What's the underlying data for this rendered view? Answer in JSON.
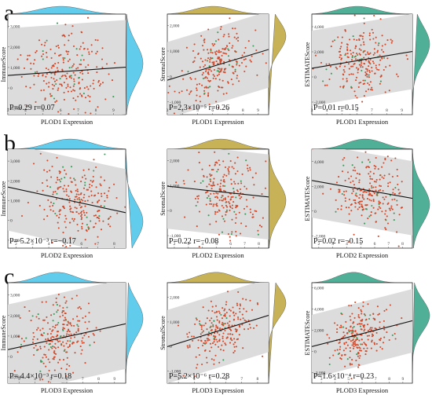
{
  "row_labels": [
    "a",
    "b",
    "c"
  ],
  "colors": {
    "immune": "#52c7ea",
    "stromal": "#c2aa46",
    "estimate": "#3ea88c",
    "points": "#d24a2c",
    "points_alt": "#3a9d5c",
    "band": "#dcdcdc",
    "line": "#111111"
  },
  "chart_data": [
    {
      "type": "scatter",
      "row": "a",
      "score": "immune",
      "xlabel": "PLOD1 Expression",
      "ylabel": "ImmuneScore",
      "annotation": "P=0.29 r=0.07",
      "x_ticks": [
        "3",
        "4",
        "5",
        "6",
        "7",
        "8",
        "9"
      ],
      "y_ticks": [
        "-1,000",
        "0",
        "1,000",
        "2,000",
        "3,000"
      ],
      "xlim": [
        3,
        9.7
      ],
      "ylim": [
        -1300,
        3600
      ],
      "x_mean": 6.3,
      "x_sd": 1.1,
      "y_intercept": 810,
      "slope": 60,
      "y_spread": 1000,
      "band_halfwidth": 2300,
      "n_points": 240,
      "seed": 11
    },
    {
      "type": "scatter",
      "row": "a",
      "score": "stromal",
      "xlabel": "PLOD1 Expression",
      "ylabel": "StromalScore",
      "annotation": "P=2.3×10⁻⁵ r=0.26",
      "x_ticks": [
        "3",
        "4",
        "5",
        "6",
        "7",
        "8",
        "9"
      ],
      "y_ticks": [
        "-1,000",
        "0",
        "1,000",
        "2,000"
      ],
      "xlim": [
        3,
        9.7
      ],
      "ylim": [
        -1500,
        2450
      ],
      "x_mean": 6.3,
      "x_sd": 1.1,
      "y_intercept": 450,
      "slope": 180,
      "y_spread": 620,
      "band_halfwidth": 1500,
      "n_points": 240,
      "seed": 23
    },
    {
      "type": "scatter",
      "row": "a",
      "score": "estimate",
      "xlabel": "PLOD1 Expression",
      "ylabel": "ESTIMATEScore",
      "annotation": "P=0.01 r=0.15",
      "x_ticks": [
        "3",
        "4",
        "5",
        "6",
        "7",
        "8",
        "9"
      ],
      "y_ticks": [
        "-2,000",
        "0",
        "2,000",
        "4,000"
      ],
      "xlim": [
        3,
        9.7
      ],
      "ylim": [
        -3000,
        5000
      ],
      "x_mean": 6.3,
      "x_sd": 1.1,
      "y_intercept": 1350,
      "slope": 200,
      "y_spread": 1500,
      "band_halfwidth": 3000,
      "n_points": 240,
      "seed": 37
    },
    {
      "type": "scatter",
      "row": "b",
      "score": "immune",
      "xlabel": "PLOD2 Expression",
      "ylabel": "ImmuneScore",
      "annotation": "P= 5.2×10⁻³ r=−0.17",
      "x_ticks": [
        "2",
        "3",
        "4",
        "5",
        "6",
        "7",
        "8"
      ],
      "y_ticks": [
        "-1,000",
        "0",
        "1,000",
        "2,000",
        "3,000"
      ],
      "xlim": [
        1.5,
        8.7
      ],
      "ylim": [
        -1400,
        3600
      ],
      "x_mean": 5.6,
      "x_sd": 1.2,
      "y_intercept": 950,
      "slope": -180,
      "y_spread": 950,
      "band_halfwidth": 2200,
      "n_points": 240,
      "seed": 51
    },
    {
      "type": "scatter",
      "row": "b",
      "score": "stromal",
      "xlabel": "PLOD2 Expression",
      "ylabel": "StromalScore",
      "annotation": "P=0.22 r=−0.08",
      "x_ticks": [
        "2",
        "3",
        "4",
        "5",
        "6",
        "7",
        "8"
      ],
      "y_ticks": [
        "-1,000",
        "0",
        "1,000",
        "2,000"
      ],
      "xlim": [
        1.5,
        8.7
      ],
      "ylim": [
        -1500,
        2450
      ],
      "x_mean": 5.6,
      "x_sd": 1.2,
      "y_intercept": 730,
      "slope": -60,
      "y_spread": 720,
      "band_halfwidth": 1700,
      "n_points": 240,
      "seed": 63
    },
    {
      "type": "scatter",
      "row": "b",
      "score": "estimate",
      "xlabel": "PLOD2 Expression",
      "ylabel": "ESTIMATEScore",
      "annotation": "P=0.02 r=−0.15",
      "x_ticks": [
        "2",
        "3",
        "4",
        "5",
        "6",
        "7",
        "8"
      ],
      "y_ticks": [
        "-2,000",
        "0",
        "2,000",
        "4,000"
      ],
      "xlim": [
        1.5,
        8.7
      ],
      "ylim": [
        -3000,
        5000
      ],
      "x_mean": 5.6,
      "x_sd": 1.2,
      "y_intercept": 1650,
      "slope": -200,
      "y_spread": 1500,
      "band_halfwidth": 3000,
      "n_points": 240,
      "seed": 77
    },
    {
      "type": "scatter",
      "row": "c",
      "score": "immune",
      "xlabel": "PLOD3 Expression",
      "ylabel": "ImmuneScore",
      "annotation": "P= 4.4×10⁻³ r=0.18",
      "x_ticks": [
        "3",
        "4",
        "5",
        "6",
        "7",
        "8",
        "9"
      ],
      "y_ticks": [
        "-1,000",
        "0",
        "1,000",
        "2,000",
        "3,000"
      ],
      "xlim": [
        2.3,
        9.7
      ],
      "ylim": [
        -1300,
        3600
      ],
      "x_mean": 5.6,
      "x_sd": 1.0,
      "y_intercept": 900,
      "slope": 170,
      "y_spread": 900,
      "band_halfwidth": 2200,
      "n_points": 240,
      "seed": 89
    },
    {
      "type": "scatter",
      "row": "c",
      "score": "stromal",
      "xlabel": "PLOD3 Expression",
      "ylabel": "StromalScore",
      "annotation": "P=5.2×10⁻⁶ r=0.28",
      "x_ticks": [
        "3",
        "4",
        "5",
        "6",
        "7",
        "8"
      ],
      "y_ticks": [
        "-1,000",
        "0",
        "1,000",
        "2,000"
      ],
      "xlim": [
        2.3,
        8.7
      ],
      "ylim": [
        -1500,
        2600
      ],
      "x_mean": 5.6,
      "x_sd": 1.0,
      "y_intercept": 650,
      "slope": 200,
      "y_spread": 620,
      "band_halfwidth": 1500,
      "n_points": 240,
      "seed": 97
    },
    {
      "type": "scatter",
      "row": "c",
      "score": "estimate",
      "xlabel": "PLOD3 Expression",
      "ylabel": "ESTIMATEScore",
      "annotation": "P=1.6×10⁻⁴ r=0.23",
      "x_ticks": [
        "3",
        "4",
        "5",
        "6",
        "7",
        "8",
        "9"
      ],
      "y_ticks": [
        "-2,000",
        "0",
        "2,000",
        "4,000",
        "6,000"
      ],
      "xlim": [
        2.3,
        9.7
      ],
      "ylim": [
        -3000,
        6500
      ],
      "x_mean": 5.6,
      "x_sd": 1.0,
      "y_intercept": 1550,
      "slope": 330,
      "y_spread": 1500,
      "band_halfwidth": 3000,
      "n_points": 240,
      "seed": 113
    }
  ]
}
